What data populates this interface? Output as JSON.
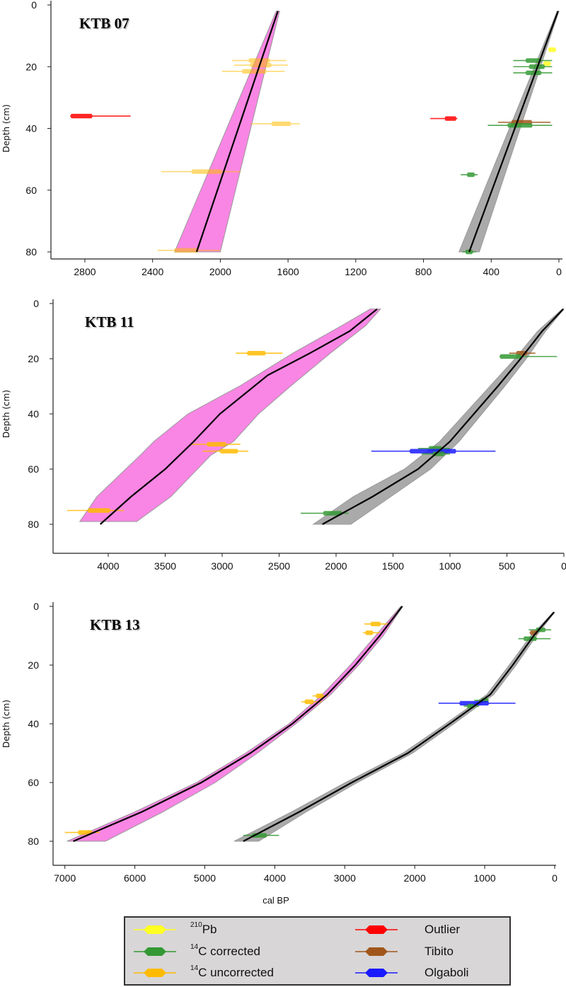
{
  "chart_data": [
    {
      "type": "line",
      "title": "KTB 07",
      "ylabel": "Depth (cm)",
      "xlabel": "cal BP",
      "xlim": [
        2900,
        0
      ],
      "ylim": [
        82,
        0
      ],
      "xticks": [
        2800,
        2400,
        2000,
        1600,
        1200,
        800,
        400,
        0
      ],
      "yticks": [
        0,
        20,
        40,
        60,
        80
      ],
      "models": [
        {
          "name": "uncorrected",
          "color": "#f986e4",
          "mean": [
            [
              2,
              1660
            ],
            [
              80,
              2140
            ]
          ],
          "band": [
            [
              2,
              1650,
              1670
            ],
            [
              80,
              2000,
              2270
            ]
          ]
        },
        {
          "name": "corrected",
          "color": "#aaaaaa",
          "mean": [
            [
              2,
              5
            ],
            [
              80,
              530
            ]
          ],
          "band": [
            [
              2,
              0,
              10
            ],
            [
              80,
              470,
              590
            ]
          ]
        }
      ],
      "dates": [
        {
          "type": "uncorrected",
          "depth": 18,
          "age": 1770,
          "range": [
            1610,
            1930
          ]
        },
        {
          "type": "uncorrected",
          "depth": 19.5,
          "age": 1760,
          "range": [
            1600,
            1920
          ]
        },
        {
          "type": "uncorrected",
          "depth": 21.5,
          "age": 1800,
          "range": [
            1620,
            1990
          ]
        },
        {
          "type": "outlier",
          "depth": 36,
          "age": 2820,
          "range": [
            2530,
            2860
          ]
        },
        {
          "type": "uncorrected",
          "depth": 38.5,
          "age": 1640,
          "range": [
            1530,
            1820
          ]
        },
        {
          "type": "uncorrected",
          "depth": 54,
          "age": 2080,
          "range": [
            1880,
            2350
          ]
        },
        {
          "type": "uncorrected",
          "depth": 79.5,
          "age": 2200,
          "range": [
            2000,
            2370
          ]
        },
        {
          "type": "pb210",
          "depth": 14.5,
          "age": 40,
          "range": [
            20,
            60
          ]
        },
        {
          "type": "pb210",
          "depth": 19,
          "age": 70,
          "range": [
            50,
            90
          ]
        },
        {
          "type": "corrected",
          "depth": 18,
          "age": 150,
          "range": [
            40,
            270
          ]
        },
        {
          "type": "corrected",
          "depth": 20,
          "age": 130,
          "range": [
            40,
            270
          ]
        },
        {
          "type": "corrected",
          "depth": 22,
          "age": 150,
          "range": [
            40,
            270
          ]
        },
        {
          "type": "outlier",
          "depth": 36.8,
          "age": 640,
          "range": [
            600,
            760
          ]
        },
        {
          "type": "tibito",
          "depth": 38,
          "age": 220,
          "range": [
            50,
            360
          ]
        },
        {
          "type": "corrected",
          "depth": 39,
          "age": 230,
          "range": [
            40,
            420
          ]
        },
        {
          "type": "corrected",
          "depth": 55,
          "age": 520,
          "range": [
            480,
            580
          ]
        },
        {
          "type": "corrected",
          "depth": 80,
          "age": 530,
          "range": [
            490,
            570
          ]
        }
      ]
    },
    {
      "type": "line",
      "title": "KTB 11",
      "ylabel": "Depth (cm)",
      "xlabel": "cal BP",
      "xlim": [
        4400,
        0
      ],
      "ylim": [
        82,
        0
      ],
      "xticks": [
        4000,
        3500,
        3000,
        2500,
        2000,
        1500,
        1000,
        500,
        0
      ],
      "yticks": [
        0,
        20,
        40,
        60,
        80
      ],
      "models": [
        {
          "name": "uncorrected",
          "color": "#f986e4",
          "mean": [
            [
              2,
              1640
            ],
            [
              10,
              1880
            ],
            [
              18,
              2230
            ],
            [
              26,
              2600
            ],
            [
              40,
              3020
            ],
            [
              50,
              3250
            ],
            [
              60,
              3500
            ],
            [
              70,
              3800
            ],
            [
              80,
              4070
            ]
          ],
          "band": [
            [
              2,
              1610,
              1700
            ],
            [
              8,
              1740,
              1950
            ],
            [
              18,
              2050,
              2380
            ],
            [
              30,
              2400,
              2850
            ],
            [
              40,
              2680,
              3300
            ],
            [
              50,
              2900,
              3600
            ],
            [
              55,
              3100,
              3720
            ],
            [
              70,
              3450,
              4100
            ],
            [
              79,
              3750,
              4250
            ]
          ]
        },
        {
          "name": "corrected",
          "color": "#aaaaaa",
          "mean": [
            [
              2,
              5
            ],
            [
              10,
              190
            ],
            [
              20,
              380
            ],
            [
              30,
              580
            ],
            [
              40,
              790
            ],
            [
              50,
              1000
            ],
            [
              60,
              1280
            ],
            [
              70,
              1680
            ],
            [
              80,
              2120
            ]
          ],
          "band": [
            [
              2,
              0,
              15
            ],
            [
              10,
              160,
              230
            ],
            [
              20,
              330,
              430
            ],
            [
              30,
              520,
              650
            ],
            [
              40,
              720,
              870
            ],
            [
              50,
              920,
              1090
            ],
            [
              60,
              1170,
              1400
            ],
            [
              70,
              1520,
              1850
            ],
            [
              80,
              1870,
              2200
            ]
          ]
        }
      ],
      "dates": [
        {
          "type": "uncorrected",
          "depth": 18,
          "age": 2700,
          "range": [
            2470,
            2880
          ]
        },
        {
          "type": "uncorrected",
          "depth": 51,
          "age": 3050,
          "range": [
            2840,
            3270
          ]
        },
        {
          "type": "uncorrected",
          "depth": 53.5,
          "age": 2940,
          "range": [
            2770,
            3170
          ]
        },
        {
          "type": "uncorrected",
          "depth": 75,
          "age": 4080,
          "range": [
            3860,
            4360
          ]
        },
        {
          "type": "tibito",
          "depth": 18,
          "age": 370,
          "range": [
            250,
            480
          ]
        },
        {
          "type": "corrected",
          "depth": 19.2,
          "age": 470,
          "range": [
            60,
            530
          ]
        },
        {
          "type": "corrected",
          "depth": 52.5,
          "age": 1130,
          "range": [
            1000,
            1280
          ]
        },
        {
          "type": "olgaboli",
          "depth": 53.5,
          "age": 1150,
          "range": [
            600,
            1690
          ]
        },
        {
          "type": "corrected",
          "depth": 54.5,
          "age": 1100,
          "range": [
            1000,
            1250
          ]
        },
        {
          "type": "corrected",
          "depth": 76,
          "age": 2030,
          "range": [
            1890,
            2310
          ]
        }
      ]
    },
    {
      "type": "line",
      "title": "KTB 13",
      "ylabel": "Depth (cm)",
      "xlabel": "cal BP",
      "xlim": [
        7100,
        0
      ],
      "ylim": [
        82,
        0
      ],
      "xticks": [
        7000,
        6000,
        5000,
        4000,
        3000,
        2000,
        1000,
        0
      ],
      "yticks": [
        0,
        20,
        40,
        60,
        80
      ],
      "models": [
        {
          "name": "uncorrected",
          "color": "#f986e4",
          "mean": [
            [
              0,
              2180
            ],
            [
              10,
              2500
            ],
            [
              20,
              2850
            ],
            [
              30,
              3250
            ],
            [
              40,
              3750
            ],
            [
              50,
              4350
            ],
            [
              60,
              5050
            ],
            [
              70,
              5900
            ],
            [
              80,
              6880
            ]
          ],
          "band": [
            [
              0,
              2170,
              2200
            ],
            [
              10,
              2450,
              2560
            ],
            [
              20,
              2800,
              2920
            ],
            [
              30,
              3200,
              3320
            ],
            [
              40,
              3700,
              3800
            ],
            [
              50,
              4250,
              4420
            ],
            [
              60,
              4850,
              5120
            ],
            [
              70,
              5600,
              6000
            ],
            [
              80,
              6420,
              6970
            ]
          ]
        },
        {
          "name": "corrected",
          "color": "#aaaaaa",
          "mean": [
            [
              2,
              10
            ],
            [
              10,
              300
            ],
            [
              20,
              600
            ],
            [
              30,
              920
            ],
            [
              40,
              1500
            ],
            [
              50,
              2100
            ],
            [
              60,
              2900
            ],
            [
              70,
              3650
            ],
            [
              80,
              4450
            ]
          ],
          "band": [
            [
              2,
              0,
              20
            ],
            [
              10,
              260,
              340
            ],
            [
              20,
              550,
              650
            ],
            [
              30,
              870,
              970
            ],
            [
              40,
              1440,
              1560
            ],
            [
              50,
              2030,
              2170
            ],
            [
              60,
              2820,
              2990
            ],
            [
              70,
              3550,
              3760
            ],
            [
              80,
              4230,
              4580
            ]
          ]
        }
      ],
      "dates": [
        {
          "type": "uncorrected",
          "depth": 6,
          "age": 2560,
          "range": [
            2380,
            2720
          ]
        },
        {
          "type": "uncorrected",
          "depth": 9,
          "age": 2650,
          "range": [
            2500,
            2740
          ]
        },
        {
          "type": "uncorrected",
          "depth": 30.5,
          "age": 3360,
          "range": [
            3240,
            3460
          ]
        },
        {
          "type": "uncorrected",
          "depth": 32.5,
          "age": 3510,
          "range": [
            3330,
            3620
          ]
        },
        {
          "type": "uncorrected",
          "depth": 77,
          "age": 6710,
          "range": [
            6500,
            7000
          ]
        },
        {
          "type": "corrected",
          "depth": 8,
          "age": 200,
          "range": [
            50,
            370
          ]
        },
        {
          "type": "tibito",
          "depth": 9,
          "age": 300,
          "range": [
            250,
            350
          ]
        },
        {
          "type": "corrected",
          "depth": 11,
          "age": 350,
          "range": [
            60,
            520
          ]
        },
        {
          "type": "corrected",
          "depth": 32,
          "age": 1000,
          "range": [
            950,
            1150
          ]
        },
        {
          "type": "olgaboli",
          "depth": 33,
          "age": 1150,
          "range": [
            560,
            1660
          ]
        },
        {
          "type": "corrected",
          "depth": 34,
          "age": 1200,
          "range": [
            1080,
            1300
          ]
        },
        {
          "type": "corrected",
          "depth": 78,
          "age": 4220,
          "range": [
            3940,
            4450
          ]
        }
      ]
    }
  ],
  "axis": {
    "xlabel": "cal BP"
  },
  "legend": {
    "items": [
      {
        "key": "pb210",
        "sup": "210",
        "text": "Pb",
        "color": "#ffff22"
      },
      {
        "key": "corrected",
        "sup": "14",
        "text": "C corrected",
        "color": "#339933"
      },
      {
        "key": "uncorrected",
        "sup": "14",
        "text": "C uncorrected",
        "color": "#ffbb00"
      },
      {
        "key": "outlier",
        "sup": "",
        "text": "Outlier",
        "color": "#ff0000"
      },
      {
        "key": "tibito",
        "sup": "",
        "text": "Tibito",
        "color": "#a0561a"
      },
      {
        "key": "olgaboli",
        "sup": "",
        "text": "Olgaboli",
        "color": "#1a1aff"
      }
    ]
  }
}
